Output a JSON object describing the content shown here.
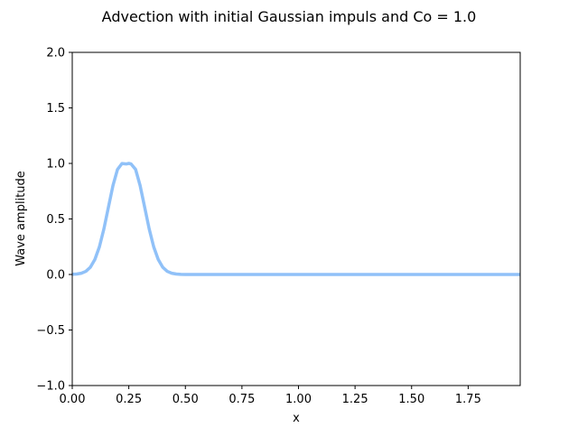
{
  "chart_data": {
    "type": "line",
    "title": "Advection with initial Gaussian impuls and Co = 1.0",
    "xlabel": "x",
    "ylabel": "Wave amplitude",
    "xlim": [
      0,
      1.98
    ],
    "ylim": [
      -1.0,
      2.0
    ],
    "x_ticks": [
      "0.00",
      "0.25",
      "0.50",
      "0.75",
      "1.00",
      "1.25",
      "1.50",
      "1.75"
    ],
    "x_tick_values": [
      0,
      0.25,
      0.5,
      0.75,
      1.0,
      1.25,
      1.5,
      1.75
    ],
    "y_ticks": [
      "−1.0",
      "−0.5",
      "0.0",
      "0.5",
      "1.0",
      "1.5",
      "2.0"
    ],
    "y_tick_values": [
      -1.0,
      -0.5,
      0.0,
      0.5,
      1.0,
      1.5,
      2.0
    ],
    "grid": false,
    "series": [
      {
        "color": "#90c1f8",
        "x": [
          0,
          0.02,
          0.04,
          0.06,
          0.08,
          0.1,
          0.12,
          0.14,
          0.16,
          0.18,
          0.2,
          0.22,
          0.24,
          0.25,
          0.26,
          0.28,
          0.3,
          0.32,
          0.34,
          0.36,
          0.38,
          0.4,
          0.42,
          0.44,
          0.46,
          0.48,
          0.5,
          0.75,
          1.0,
          1.25,
          1.5,
          1.75,
          1.98
        ],
        "y": [
          0.002,
          0.004,
          0.011,
          0.028,
          0.065,
          0.135,
          0.249,
          0.411,
          0.607,
          0.801,
          0.946,
          0.999,
          0.995,
          1.0,
          0.995,
          0.946,
          0.801,
          0.607,
          0.411,
          0.249,
          0.135,
          0.065,
          0.028,
          0.011,
          0.004,
          0.001,
          0.0,
          0.0,
          0.0,
          0.0,
          0.0,
          0.0,
          0.0
        ]
      }
    ]
  }
}
